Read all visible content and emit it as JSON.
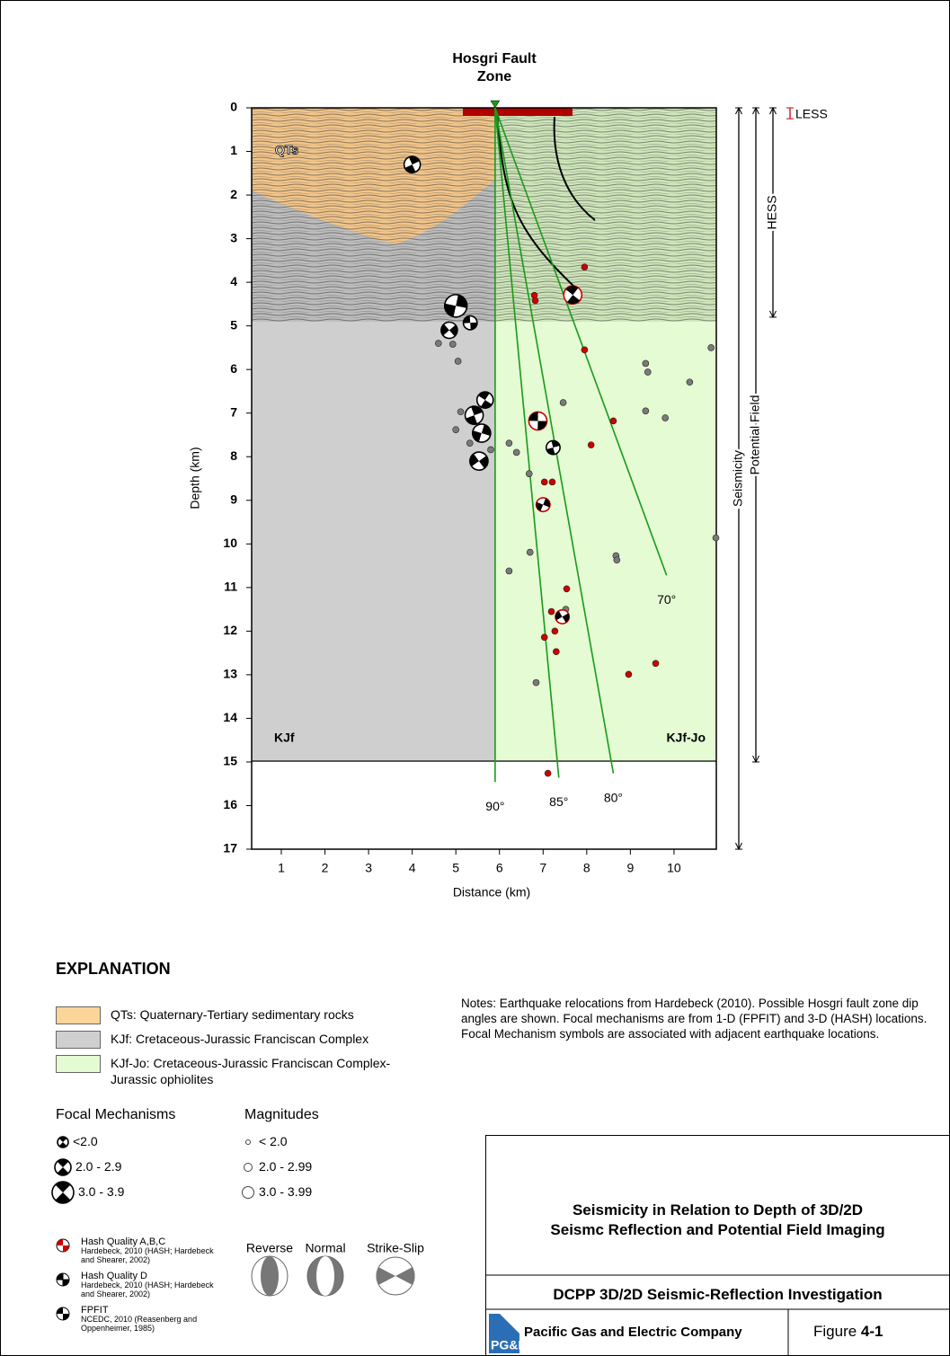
{
  "chart_data": {
    "type": "scatter",
    "title": "Hosgri Fault Zone",
    "x_label": "Distance (km)",
    "y_label": "Depth (km)",
    "xlim": [
      0.32,
      10.97
    ],
    "ylim": [
      0,
      17
    ],
    "y_inverted": true,
    "xticks": [
      1,
      2,
      3,
      4,
      5,
      6,
      7,
      8,
      9,
      10
    ],
    "yticks": [
      0,
      1,
      2,
      3,
      4,
      5,
      6,
      7,
      8,
      9,
      10,
      11,
      12,
      13,
      14,
      15,
      16,
      17
    ],
    "region_labels": [
      "QTs",
      "KJf",
      "KJf-Jo"
    ],
    "dip_lines": [
      {
        "label": "90°",
        "x": [
          5.9,
          5.9
        ],
        "y": [
          0,
          15.46
        ]
      },
      {
        "label": "85°",
        "x": [
          5.9,
          7.36
        ],
        "y": [
          0,
          15.36
        ]
      },
      {
        "label": "80°",
        "x": [
          5.9,
          8.61
        ],
        "y": [
          0,
          15.26
        ]
      },
      {
        "label": "70°",
        "x": [
          5.9,
          9.83
        ],
        "y": [
          0,
          10.72
        ]
      }
    ],
    "series": [
      {
        "color": "#cc0000",
        "x": [
          7.95,
          6.8,
          6.82,
          7.95,
          8.61,
          8.1,
          7.03,
          7.21,
          7.54,
          7.19,
          7.27,
          7.03,
          7.3,
          7.11,
          8.96,
          9.58
        ],
        "values": [
          3.65,
          4.3,
          4.42,
          5.55,
          7.18,
          7.73,
          8.58,
          8.58,
          11.03,
          11.55,
          12.0,
          12.14,
          12.47,
          15.26,
          12.99,
          12.74
        ]
      },
      {
        "color": "#7a7a7a",
        "x": [
          10.85,
          9.35,
          9.4,
          10.36,
          7.46,
          9.35,
          9.8,
          6.22,
          6.39,
          6.68,
          6.7,
          8.67,
          8.69,
          6.22,
          7.52,
          6.84,
          10.96,
          5.05,
          5.11,
          5.0,
          5.32,
          5.8,
          4.93,
          4.6
        ],
        "values": [
          5.5,
          5.86,
          6.06,
          6.29,
          6.76,
          6.95,
          7.11,
          7.69,
          7.9,
          8.39,
          10.19,
          10.27,
          10.37,
          10.62,
          11.5,
          13.18,
          9.86,
          5.81,
          6.97,
          7.38,
          7.69,
          7.84,
          5.42,
          5.4
        ]
      }
    ],
    "mechanisms": [
      {
        "x": 4.0,
        "depth": 1.3,
        "magnitude": 2.8,
        "color": "#000000"
      },
      {
        "x": 5.0,
        "depth": 4.54,
        "magnitude": 3.8,
        "color": "#000000"
      },
      {
        "x": 4.85,
        "depth": 5.1,
        "magnitude": 2.8,
        "color": "#000000"
      },
      {
        "x": 5.33,
        "depth": 4.93,
        "magnitude": 2.4,
        "color": "#000000"
      },
      {
        "x": 5.67,
        "depth": 6.7,
        "magnitude": 2.8,
        "color": "#000000"
      },
      {
        "x": 5.42,
        "depth": 7.05,
        "magnitude": 3.1,
        "color": "#000000"
      },
      {
        "x": 5.59,
        "depth": 7.46,
        "magnitude": 3.1,
        "color": "#000000"
      },
      {
        "x": 5.53,
        "depth": 8.1,
        "magnitude": 3.1,
        "color": "#000000"
      },
      {
        "x": 6.88,
        "depth": 7.18,
        "magnitude": 3.1,
        "color": "#cc0000"
      },
      {
        "x": 7.68,
        "depth": 4.29,
        "magnitude": 3.1,
        "color": "#cc0000"
      },
      {
        "x": 7.23,
        "depth": 7.79,
        "magnitude": 2.4,
        "color": "#000000"
      },
      {
        "x": 7.0,
        "depth": 9.1,
        "magnitude": 2.4,
        "color": "#cc0000"
      },
      {
        "x": 7.44,
        "depth": 11.67,
        "magnitude": 2.4,
        "color": "#cc0000"
      }
    ],
    "depth_ranges": [
      {
        "label": "Seismicity",
        "range": [
          0,
          17
        ]
      },
      {
        "label": "Potential Field",
        "range": [
          0,
          15
        ]
      },
      {
        "label": "HESS",
        "range": [
          0,
          4.8
        ]
      },
      {
        "label": "LESS",
        "range": [
          0,
          0.25
        ]
      }
    ]
  },
  "explanation": {
    "heading": "EXPLANATION",
    "units": [
      {
        "label": "QTs: Quaternary-Tertiary sedimentary rocks",
        "color": "#fcd59a"
      },
      {
        "label": "KJf: Cretaceous-Jurassic Franciscan Complex",
        "color": "#cfcfcf"
      },
      {
        "label": "KJf-Jo: Cretaceous-Jurassic Franciscan Complex-Jurassic ophiolites",
        "color": "#e4fbd3"
      }
    ],
    "focal_heading": "Focal Mechanisms",
    "focal_classes": [
      "<2.0",
      "2.0 - 2.9",
      "3.0 - 3.9"
    ],
    "magnitude_heading": "Magnitudes",
    "magnitude_classes": [
      "< 2.0",
      "2.0 - 2.99",
      "3.0 - 3.99"
    ],
    "sources": [
      {
        "title": "Hash Quality A,B,C",
        "detail": "Hardebeck, 2010 (HASH; Hardebeck and Shearer, 2002)"
      },
      {
        "title": "Hash Quality D",
        "detail": "Hardebeck, 2010 (HASH; Hardebeck and Shearer, 2002)"
      },
      {
        "title": "FPFIT",
        "detail": "NCEDC, 2010 (Reasenberg and Oppenheimer, 1985)"
      }
    ],
    "mechanism_types": [
      "Reverse",
      "Normal",
      "Strike-Slip"
    ]
  },
  "notes": "Notes: Earthquake relocations from Hardebeck (2010).  Possible Hosgri fault zone dip angles are shown.  Focal mechanisms are from 1-D (FPFIT) and 3-D (HASH) locations. Focal Mechanism symbols are associated with adjacent earthquake locations.",
  "title_block": {
    "title_lines": [
      "Seismicity in Relation to Depth of 3D/2D",
      "Seismc Reflection and Potential Field Imaging"
    ],
    "project": "DCPP 3D/2D Seismic-Reflection Investigation",
    "logo_text": "PG&E",
    "company": "Pacific Gas and Electric Company",
    "figure_label": "Figure",
    "figure_number": "4-1"
  }
}
